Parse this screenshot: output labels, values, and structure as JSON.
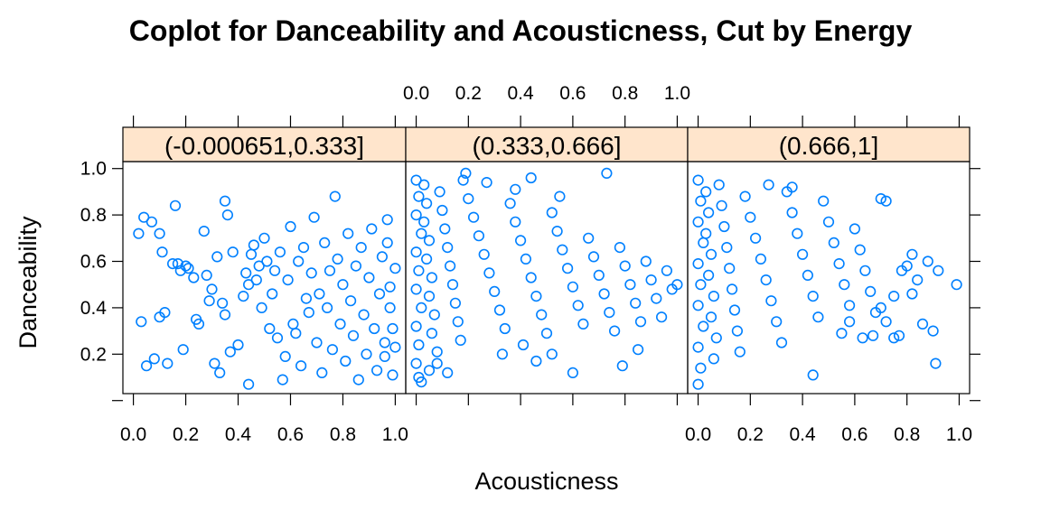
{
  "chart_data": {
    "type": "scatter",
    "title": "Coplot for Danceability and Acousticness, Cut by Energy",
    "xlabel": "Acousticness",
    "ylabel": "Danceability",
    "xlim": [
      -0.04,
      1.04
    ],
    "ylim": [
      0.03,
      1.03
    ],
    "x_ticks": [
      "0.0",
      "0.2",
      "0.4",
      "0.6",
      "0.8",
      "1.0"
    ],
    "y_ticks": [
      "0.2",
      "0.4",
      "0.6",
      "0.8",
      "1.0"
    ],
    "marker_color": "#0080ff",
    "strip_color": "#ffe5cc",
    "panels": [
      {
        "strip_label": "(-0.000651,0.333]",
        "points": [
          [
            0.02,
            0.72
          ],
          [
            0.03,
            0.34
          ],
          [
            0.04,
            0.79
          ],
          [
            0.07,
            0.77
          ],
          [
            0.05,
            0.15
          ],
          [
            0.08,
            0.18
          ],
          [
            0.1,
            0.72
          ],
          [
            0.1,
            0.36
          ],
          [
            0.11,
            0.64
          ],
          [
            0.12,
            0.38
          ],
          [
            0.13,
            0.16
          ],
          [
            0.15,
            0.59
          ],
          [
            0.16,
            0.84
          ],
          [
            0.17,
            0.59
          ],
          [
            0.18,
            0.56
          ],
          [
            0.19,
            0.22
          ],
          [
            0.2,
            0.58
          ],
          [
            0.21,
            0.57
          ],
          [
            0.23,
            0.53
          ],
          [
            0.24,
            0.35
          ],
          [
            0.25,
            0.33
          ],
          [
            0.27,
            0.73
          ],
          [
            0.28,
            0.54
          ],
          [
            0.29,
            0.43
          ],
          [
            0.3,
            0.48
          ],
          [
            0.32,
            0.62
          ],
          [
            0.31,
            0.16
          ],
          [
            0.33,
            0.12
          ],
          [
            0.34,
            0.42
          ],
          [
            0.35,
            0.86
          ],
          [
            0.36,
            0.8
          ],
          [
            0.35,
            0.37
          ],
          [
            0.38,
            0.64
          ],
          [
            0.37,
            0.21
          ],
          [
            0.4,
            0.24
          ],
          [
            0.42,
            0.45
          ],
          [
            0.43,
            0.55
          ],
          [
            0.44,
            0.5
          ],
          [
            0.44,
            0.07
          ],
          [
            0.45,
            0.63
          ],
          [
            0.46,
            0.67
          ],
          [
            0.47,
            0.52
          ],
          [
            0.48,
            0.58
          ],
          [
            0.49,
            0.4
          ],
          [
            0.5,
            0.7
          ],
          [
            0.51,
            0.6
          ],
          [
            0.52,
            0.31
          ],
          [
            0.53,
            0.46
          ],
          [
            0.54,
            0.56
          ],
          [
            0.55,
            0.27
          ],
          [
            0.56,
            0.64
          ],
          [
            0.57,
            0.09
          ],
          [
            0.58,
            0.19
          ],
          [
            0.59,
            0.52
          ],
          [
            0.6,
            0.75
          ],
          [
            0.61,
            0.33
          ],
          [
            0.62,
            0.29
          ],
          [
            0.63,
            0.6
          ],
          [
            0.64,
            0.15
          ],
          [
            0.65,
            0.66
          ],
          [
            0.66,
            0.44
          ],
          [
            0.67,
            0.38
          ],
          [
            0.68,
            0.55
          ],
          [
            0.69,
            0.79
          ],
          [
            0.7,
            0.25
          ],
          [
            0.71,
            0.46
          ],
          [
            0.72,
            0.12
          ],
          [
            0.73,
            0.68
          ],
          [
            0.74,
            0.4
          ],
          [
            0.75,
            0.56
          ],
          [
            0.76,
            0.22
          ],
          [
            0.77,
            0.88
          ],
          [
            0.78,
            0.61
          ],
          [
            0.79,
            0.33
          ],
          [
            0.8,
            0.5
          ],
          [
            0.81,
            0.17
          ],
          [
            0.82,
            0.72
          ],
          [
            0.83,
            0.43
          ],
          [
            0.84,
            0.28
          ],
          [
            0.85,
            0.58
          ],
          [
            0.86,
            0.09
          ],
          [
            0.87,
            0.66
          ],
          [
            0.88,
            0.37
          ],
          [
            0.89,
            0.2
          ],
          [
            0.9,
            0.53
          ],
          [
            0.91,
            0.74
          ],
          [
            0.92,
            0.31
          ],
          [
            0.93,
            0.13
          ],
          [
            0.94,
            0.46
          ],
          [
            0.95,
            0.62
          ],
          [
            0.96,
            0.25
          ],
          [
            0.97,
            0.78
          ],
          [
            0.98,
            0.4
          ],
          [
            0.99,
            0.11
          ],
          [
            1.0,
            0.57
          ],
          [
            0.97,
            0.68
          ],
          [
            0.99,
            0.31
          ],
          [
            0.96,
            0.19
          ],
          [
            0.98,
            0.49
          ],
          [
            1.0,
            0.23
          ]
        ]
      },
      {
        "strip_label": "(0.333,0.666]",
        "points": [
          [
            0.0,
            0.95
          ],
          [
            0.01,
            0.88
          ],
          [
            0.0,
            0.8
          ],
          [
            0.02,
            0.72
          ],
          [
            0.0,
            0.64
          ],
          [
            0.01,
            0.56
          ],
          [
            0.0,
            0.48
          ],
          [
            0.02,
            0.4
          ],
          [
            0.0,
            0.32
          ],
          [
            0.01,
            0.24
          ],
          [
            0.0,
            0.16
          ],
          [
            0.01,
            0.1
          ],
          [
            0.03,
            0.93
          ],
          [
            0.04,
            0.85
          ],
          [
            0.03,
            0.77
          ],
          [
            0.05,
            0.69
          ],
          [
            0.04,
            0.61
          ],
          [
            0.06,
            0.53
          ],
          [
            0.05,
            0.45
          ],
          [
            0.07,
            0.37
          ],
          [
            0.06,
            0.29
          ],
          [
            0.08,
            0.21
          ],
          [
            0.09,
            0.9
          ],
          [
            0.1,
            0.82
          ],
          [
            0.11,
            0.74
          ],
          [
            0.12,
            0.66
          ],
          [
            0.13,
            0.58
          ],
          [
            0.14,
            0.5
          ],
          [
            0.15,
            0.42
          ],
          [
            0.16,
            0.34
          ],
          [
            0.17,
            0.26
          ],
          [
            0.18,
            0.95
          ],
          [
            0.2,
            0.87
          ],
          [
            0.22,
            0.79
          ],
          [
            0.24,
            0.71
          ],
          [
            0.26,
            0.63
          ],
          [
            0.28,
            0.55
          ],
          [
            0.3,
            0.47
          ],
          [
            0.32,
            0.39
          ],
          [
            0.34,
            0.31
          ],
          [
            0.36,
            0.85
          ],
          [
            0.38,
            0.77
          ],
          [
            0.4,
            0.69
          ],
          [
            0.42,
            0.61
          ],
          [
            0.44,
            0.53
          ],
          [
            0.46,
            0.45
          ],
          [
            0.48,
            0.37
          ],
          [
            0.5,
            0.29
          ],
          [
            0.52,
            0.81
          ],
          [
            0.54,
            0.73
          ],
          [
            0.56,
            0.65
          ],
          [
            0.58,
            0.57
          ],
          [
            0.6,
            0.49
          ],
          [
            0.62,
            0.41
          ],
          [
            0.64,
            0.33
          ],
          [
            0.66,
            0.7
          ],
          [
            0.68,
            0.62
          ],
          [
            0.7,
            0.54
          ],
          [
            0.72,
            0.46
          ],
          [
            0.74,
            0.38
          ],
          [
            0.76,
            0.3
          ],
          [
            0.78,
            0.66
          ],
          [
            0.8,
            0.58
          ],
          [
            0.82,
            0.5
          ],
          [
            0.84,
            0.42
          ],
          [
            0.86,
            0.34
          ],
          [
            0.88,
            0.6
          ],
          [
            0.9,
            0.52
          ],
          [
            0.92,
            0.44
          ],
          [
            0.94,
            0.36
          ],
          [
            0.96,
            0.56
          ],
          [
            0.98,
            0.48
          ],
          [
            1.0,
            0.5
          ],
          [
            0.19,
            0.98
          ],
          [
            0.27,
            0.94
          ],
          [
            0.38,
            0.91
          ],
          [
            0.44,
            0.96
          ],
          [
            0.55,
            0.88
          ],
          [
            0.73,
            0.98
          ],
          [
            0.6,
            0.12
          ],
          [
            0.46,
            0.17
          ],
          [
            0.52,
            0.2
          ],
          [
            0.79,
            0.15
          ],
          [
            0.85,
            0.22
          ],
          [
            0.33,
            0.2
          ],
          [
            0.41,
            0.24
          ],
          [
            0.12,
            0.12
          ],
          [
            0.08,
            0.16
          ],
          [
            0.02,
            0.08
          ],
          [
            0.05,
            0.13
          ]
        ]
      },
      {
        "strip_label": "(0.666,1]",
        "points": [
          [
            0.0,
            0.95
          ],
          [
            0.01,
            0.86
          ],
          [
            0.0,
            0.77
          ],
          [
            0.02,
            0.68
          ],
          [
            0.0,
            0.59
          ],
          [
            0.01,
            0.5
          ],
          [
            0.0,
            0.41
          ],
          [
            0.02,
            0.32
          ],
          [
            0.0,
            0.23
          ],
          [
            0.01,
            0.14
          ],
          [
            0.0,
            0.07
          ],
          [
            0.03,
            0.9
          ],
          [
            0.04,
            0.81
          ],
          [
            0.03,
            0.72
          ],
          [
            0.05,
            0.63
          ],
          [
            0.04,
            0.54
          ],
          [
            0.06,
            0.45
          ],
          [
            0.05,
            0.36
          ],
          [
            0.07,
            0.27
          ],
          [
            0.06,
            0.18
          ],
          [
            0.08,
            0.93
          ],
          [
            0.09,
            0.84
          ],
          [
            0.1,
            0.75
          ],
          [
            0.11,
            0.66
          ],
          [
            0.12,
            0.57
          ],
          [
            0.13,
            0.48
          ],
          [
            0.14,
            0.39
          ],
          [
            0.15,
            0.3
          ],
          [
            0.16,
            0.21
          ],
          [
            0.18,
            0.88
          ],
          [
            0.2,
            0.79
          ],
          [
            0.22,
            0.7
          ],
          [
            0.24,
            0.61
          ],
          [
            0.26,
            0.52
          ],
          [
            0.28,
            0.43
          ],
          [
            0.3,
            0.34
          ],
          [
            0.32,
            0.25
          ],
          [
            0.34,
            0.9
          ],
          [
            0.36,
            0.81
          ],
          [
            0.38,
            0.72
          ],
          [
            0.4,
            0.63
          ],
          [
            0.42,
            0.54
          ],
          [
            0.44,
            0.45
          ],
          [
            0.46,
            0.36
          ],
          [
            0.48,
            0.86
          ],
          [
            0.5,
            0.77
          ],
          [
            0.52,
            0.68
          ],
          [
            0.54,
            0.59
          ],
          [
            0.56,
            0.5
          ],
          [
            0.58,
            0.41
          ],
          [
            0.6,
            0.74
          ],
          [
            0.62,
            0.65
          ],
          [
            0.64,
            0.56
          ],
          [
            0.66,
            0.47
          ],
          [
            0.68,
            0.38
          ],
          [
            0.7,
            0.87
          ],
          [
            0.72,
            0.86
          ],
          [
            0.75,
            0.27
          ],
          [
            0.77,
            0.28
          ],
          [
            0.8,
            0.58
          ],
          [
            0.82,
            0.63
          ],
          [
            0.84,
            0.52
          ],
          [
            0.86,
            0.33
          ],
          [
            0.88,
            0.6
          ],
          [
            0.9,
            0.3
          ],
          [
            0.92,
            0.56
          ],
          [
            0.91,
            0.16
          ],
          [
            0.99,
            0.5
          ],
          [
            0.78,
            0.56
          ],
          [
            0.7,
            0.4
          ],
          [
            0.44,
            0.11
          ],
          [
            0.55,
            0.29
          ],
          [
            0.63,
            0.27
          ],
          [
            0.67,
            0.28
          ],
          [
            0.58,
            0.34
          ],
          [
            0.75,
            0.45
          ],
          [
            0.82,
            0.46
          ],
          [
            0.72,
            0.34
          ],
          [
            0.36,
            0.92
          ],
          [
            0.27,
            0.93
          ]
        ]
      }
    ]
  }
}
